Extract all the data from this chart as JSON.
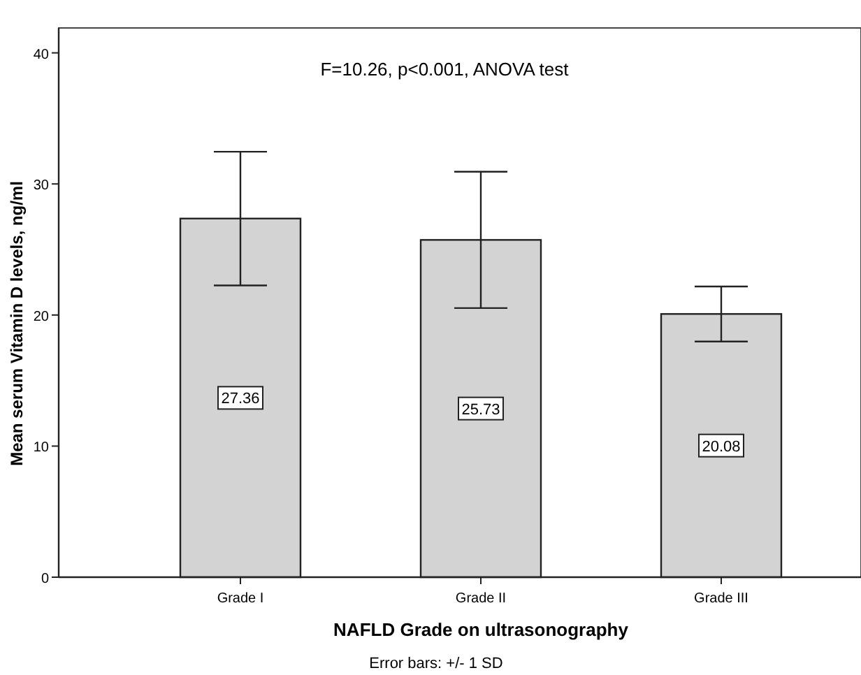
{
  "chart_data": {
    "type": "bar",
    "ylabel": "Mean serum Vitamin D levels, ng/ml",
    "xlabel": "NAFLD Grade on ultrasonography",
    "annotations": [
      "F=10.26, p<0.001, ANOVA test",
      "Error bars: +/- 1 SD"
    ],
    "categories": [
      "Grade I",
      "Grade II",
      "Grade III"
    ],
    "values": [
      27.36,
      25.73,
      20.08
    ],
    "errors": [
      5.1,
      5.2,
      2.1
    ],
    "color": "#d3d3d3",
    "data_labels": true,
    "ylim": [
      0,
      41.9
    ],
    "yticks": [
      0,
      10,
      20,
      30,
      40
    ],
    "grid": false
  }
}
